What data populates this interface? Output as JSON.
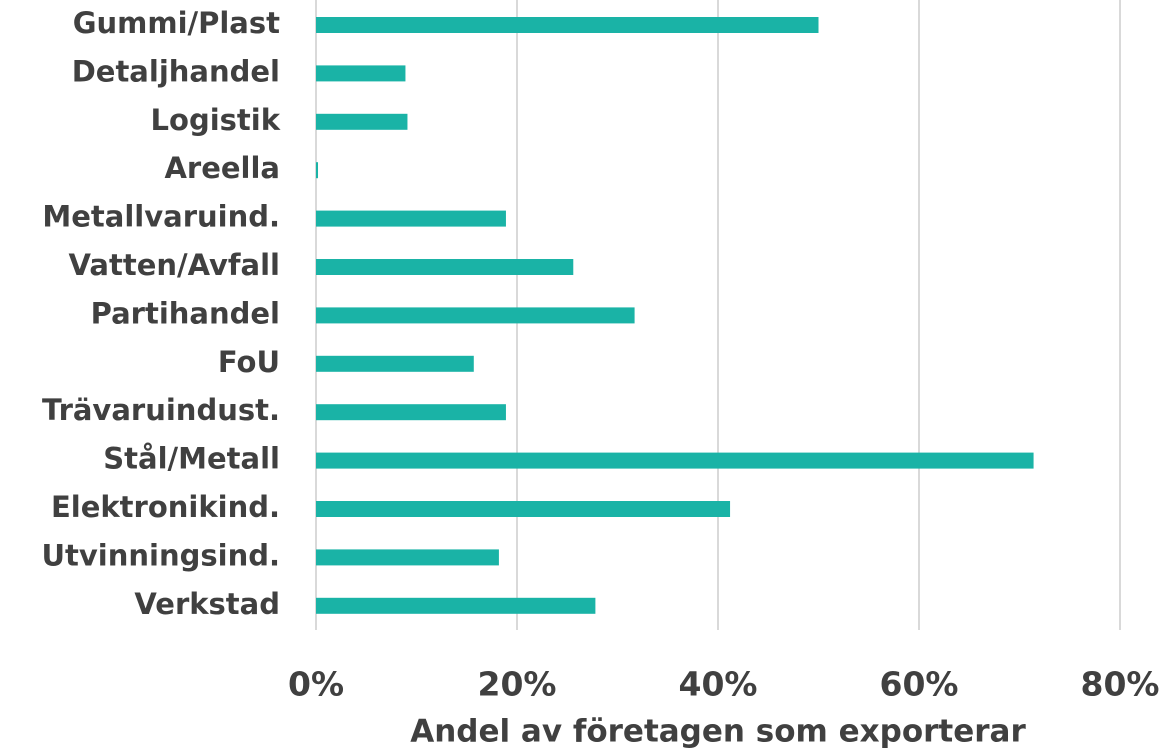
{
  "chart_data": {
    "type": "hbar",
    "categories": [
      "Gummi/Plast",
      "Detaljhandel",
      "Logistik",
      "Areella",
      "Metallvaruind.",
      "Vatten/Avfall",
      "Partihandel",
      "FoU",
      "Trävaruindust.",
      "Stål/Metall",
      "Elektronikind.",
      "Utvinningsind.",
      "Verkstad"
    ],
    "values": [
      50.0,
      8.9,
      9.1,
      0.2,
      18.9,
      25.6,
      31.7,
      15.7,
      18.9,
      71.4,
      41.2,
      18.2,
      27.8
    ],
    "color": "#1ab3a6",
    "xlim": [
      0,
      80
    ],
    "xticks": [
      {
        "value": 0,
        "label": "0%"
      },
      {
        "value": 20,
        "label": "20%"
      },
      {
        "value": 40,
        "label": "40%"
      },
      {
        "value": 60,
        "label": "60%"
      },
      {
        "value": 80,
        "label": "80%"
      }
    ],
    "xlabel": "Andel av företagen som exporterar",
    "grid": true
  }
}
